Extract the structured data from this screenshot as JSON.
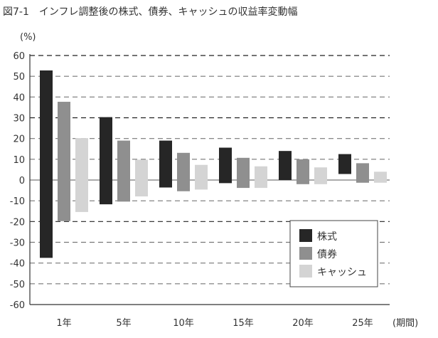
{
  "chart_data": {
    "type": "bar",
    "subtype": "floating-range",
    "title": "図7-1　インフレ調整後の株式、債券、キャッシュの収益率変動幅",
    "ylabel": "(%)",
    "xlabel": "(期間)",
    "ylim": [
      -60,
      60
    ],
    "yticks": [
      60,
      50,
      40,
      30,
      20,
      10,
      0,
      -10,
      -20,
      -30,
      -40,
      -50,
      -60
    ],
    "grid": true,
    "legend_position": "bottom-right",
    "categories": [
      "1年",
      "5年",
      "10年",
      "15年",
      "20年",
      "25年"
    ],
    "series": [
      {
        "name": "株式",
        "color": "#262626",
        "high": [
          52.8,
          30.3,
          19.0,
          15.6,
          14.0,
          12.5
        ],
        "low": [
          -37.5,
          -11.7,
          -3.6,
          -1.5,
          0.0,
          2.9
        ]
      },
      {
        "name": "債券",
        "color": "#8f8f8f",
        "high": [
          37.7,
          19.0,
          13.1,
          10.7,
          10.0,
          8.1
        ],
        "low": [
          -19.8,
          -10.4,
          -5.4,
          -3.8,
          -2.0,
          -1.3
        ]
      },
      {
        "name": "キャッシュ",
        "color": "#d4d4d4",
        "high": [
          20.2,
          9.8,
          7.3,
          6.6,
          6.1,
          4.0
        ],
        "low": [
          -15.4,
          -7.9,
          -4.6,
          -3.8,
          -2.0,
          -1.3
        ]
      }
    ]
  }
}
